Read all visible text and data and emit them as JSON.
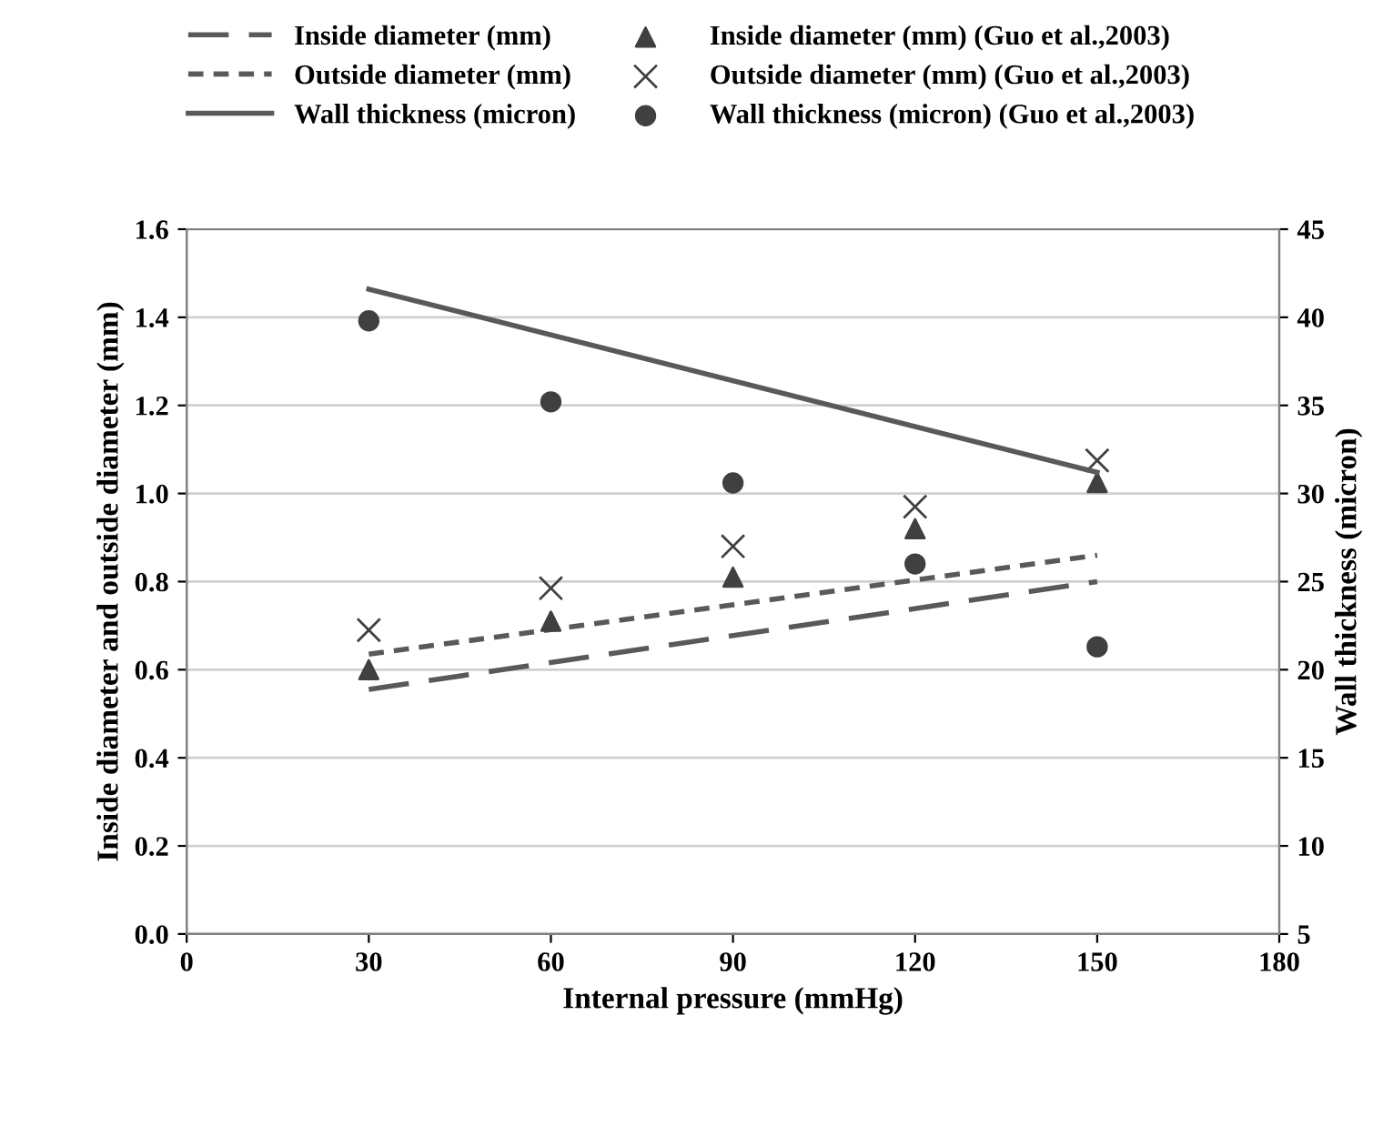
{
  "chart_data": {
    "type": "line",
    "xlabel": "Internal pressure (mmHg)",
    "ylabel": "Inside diameter and outside diameter (mm)",
    "y2label": "Wall thickness (micron)",
    "xlim": [
      0,
      180
    ],
    "xticks": [
      0,
      30,
      60,
      90,
      120,
      150,
      180
    ],
    "ylim": [
      0,
      1.6
    ],
    "yticks": [
      {
        "value": 0,
        "label": "0.0"
      },
      0.2,
      0.4,
      0.6,
      0.8,
      {
        "value": 1,
        "label": "1.0"
      },
      1.2,
      1.4,
      1.6
    ],
    "y2lim": [
      5,
      45
    ],
    "y2ticks": [
      5,
      10,
      15,
      20,
      25,
      30,
      35,
      40,
      45
    ],
    "grid": "y",
    "legend": "top",
    "series": [
      {
        "name": "Inside diameter (mm)",
        "line_style": "dashed",
        "color": "#595959",
        "x": [
          30,
          150
        ],
        "values": [
          0.555,
          0.8
        ]
      },
      {
        "name": "Outside diameter (mm)",
        "line_style": "dotted",
        "color": "#595959",
        "x": [
          30,
          150
        ],
        "values": [
          0.635,
          0.86
        ]
      },
      {
        "name": "Wall thickness (micron)",
        "line_style": "solid",
        "color": "#595959",
        "axis": "y2",
        "x": [
          30,
          150
        ],
        "values": [
          41.6,
          31.2
        ]
      },
      {
        "name": "Inside diameter (mm) (Guo et al.,2003)",
        "type": "scatter",
        "marker": "triangle",
        "color": "#404040",
        "x": [
          30,
          60,
          90,
          120,
          150
        ],
        "values": [
          0.6,
          0.71,
          0.81,
          0.92,
          1.025
        ]
      },
      {
        "name": "Outside diameter (mm) (Guo et al.,2003)",
        "type": "scatter",
        "marker": "cross",
        "color": "#404040",
        "x": [
          30,
          60,
          90,
          120,
          150
        ],
        "values": [
          0.69,
          0.785,
          0.88,
          0.97,
          1.075
        ]
      },
      {
        "name": "Wall thickness (micron) (Guo et al.,2003)",
        "type": "scatter",
        "marker": "circle",
        "color": "#404040",
        "axis": "y2",
        "x": [
          30,
          60,
          90,
          120,
          150
        ],
        "values": [
          39.8,
          35.2,
          30.6,
          26.0,
          21.3
        ]
      }
    ]
  }
}
